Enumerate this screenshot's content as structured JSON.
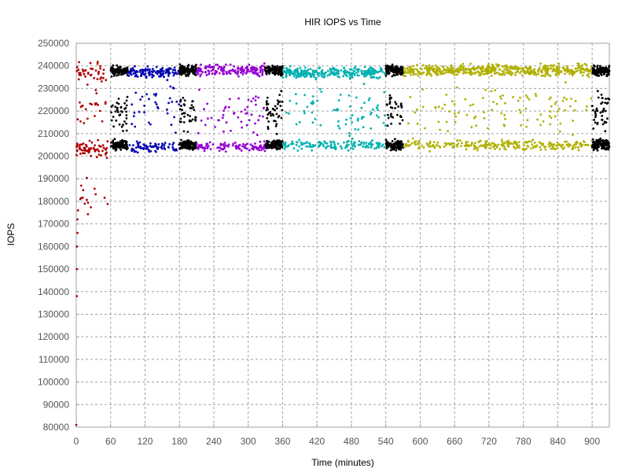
{
  "chart_data": {
    "type": "scatter",
    "title": "HIR IOPS vs Time",
    "xlabel": "Time (minutes)",
    "ylabel": "IOPS",
    "xlim": [
      0,
      930
    ],
    "ylim": [
      80000,
      250000
    ],
    "xticks": [
      0,
      60,
      120,
      180,
      240,
      300,
      360,
      420,
      480,
      540,
      600,
      660,
      720,
      780,
      840,
      900
    ],
    "yticks": [
      80000,
      90000,
      100000,
      110000,
      120000,
      130000,
      140000,
      150000,
      160000,
      170000,
      180000,
      190000,
      200000,
      210000,
      220000,
      230000,
      240000,
      250000
    ],
    "grid": true,
    "legend": "none",
    "series": [
      {
        "color": "#b00000",
        "x_range": [
          0,
          55
        ],
        "bands": [
          {
            "level": 203000,
            "spread": 5000,
            "share": 0.45
          },
          {
            "level": 237000,
            "spread": 6000,
            "share": 0.3
          },
          {
            "level": 220000,
            "spread": 15000,
            "share": 0.15
          },
          {
            "level": 180000,
            "spread": 12000,
            "share": 0.1
          }
        ],
        "low_points": [
          [
            0,
            81000
          ],
          [
            1,
            138000
          ],
          [
            1,
            150000
          ],
          [
            1,
            160000
          ],
          [
            2,
            166000
          ],
          [
            2,
            172000
          ],
          [
            3,
            176000
          ]
        ]
      },
      {
        "color": "#000000",
        "x_range": [
          60,
          90
        ],
        "bands": [
          {
            "level": 238000,
            "spread": 3000,
            "share": 0.45
          },
          {
            "level": 205000,
            "spread": 3000,
            "share": 0.4
          },
          {
            "level": 220000,
            "spread": 12000,
            "share": 0.15
          }
        ]
      },
      {
        "color": "#0000b0",
        "x_range": [
          90,
          180
        ],
        "bands": [
          {
            "level": 237000,
            "spread": 3500,
            "share": 0.55
          },
          {
            "level": 204000,
            "spread": 3000,
            "share": 0.3
          },
          {
            "level": 220000,
            "spread": 18000,
            "share": 0.15
          }
        ]
      },
      {
        "color": "#000000",
        "x_range": [
          180,
          210
        ],
        "bands": [
          {
            "level": 238000,
            "spread": 3000,
            "share": 0.45
          },
          {
            "level": 205000,
            "spread": 3000,
            "share": 0.4
          },
          {
            "level": 220000,
            "spread": 12000,
            "share": 0.15
          }
        ]
      },
      {
        "color": "#9400d3",
        "x_range": [
          210,
          330
        ],
        "bands": [
          {
            "level": 238000,
            "spread": 3500,
            "share": 0.55
          },
          {
            "level": 204000,
            "spread": 3000,
            "share": 0.3
          },
          {
            "level": 220000,
            "spread": 18000,
            "share": 0.15
          }
        ]
      },
      {
        "color": "#000000",
        "x_range": [
          330,
          360
        ],
        "bands": [
          {
            "level": 238000,
            "spread": 3000,
            "share": 0.45
          },
          {
            "level": 205000,
            "spread": 3000,
            "share": 0.4
          },
          {
            "level": 220000,
            "spread": 12000,
            "share": 0.15
          }
        ]
      },
      {
        "color": "#00b0b0",
        "x_range": [
          360,
          540
        ],
        "bands": [
          {
            "level": 237000,
            "spread": 3500,
            "share": 0.55
          },
          {
            "level": 205000,
            "spread": 3000,
            "share": 0.3
          },
          {
            "level": 220000,
            "spread": 18000,
            "share": 0.15
          }
        ]
      },
      {
        "color": "#000000",
        "x_range": [
          540,
          570
        ],
        "bands": [
          {
            "level": 238000,
            "spread": 3000,
            "share": 0.45
          },
          {
            "level": 205000,
            "spread": 3000,
            "share": 0.4
          },
          {
            "level": 220000,
            "spread": 12000,
            "share": 0.15
          }
        ]
      },
      {
        "color": "#b0b000",
        "x_range": [
          570,
          900
        ],
        "bands": [
          {
            "level": 238000,
            "spread": 3500,
            "share": 0.6
          },
          {
            "level": 205000,
            "spread": 3000,
            "share": 0.28
          },
          {
            "level": 220000,
            "spread": 18000,
            "share": 0.12
          }
        ]
      },
      {
        "color": "#000000",
        "x_range": [
          900,
          930
        ],
        "bands": [
          {
            "level": 238000,
            "spread": 3000,
            "share": 0.45
          },
          {
            "level": 205000,
            "spread": 3000,
            "share": 0.4
          },
          {
            "level": 220000,
            "spread": 12000,
            "share": 0.15
          }
        ]
      }
    ]
  }
}
